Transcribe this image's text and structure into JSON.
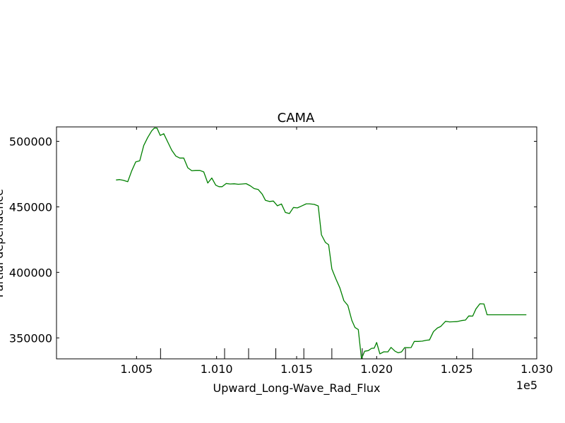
{
  "chart_data": {
    "type": "line",
    "title": "CAMA",
    "xlabel": "Upward_Long-Wave_Rad_Flux",
    "ylabel": "Partial dependence",
    "x_offset_label": "1e5",
    "xlim": [
      100000,
      103000
    ],
    "ylim": [
      334000,
      511000
    ],
    "x_ticks": [
      100500,
      101000,
      101500,
      102000,
      102500,
      103000
    ],
    "x_tick_labels": [
      "1.005",
      "1.010",
      "1.015",
      "1.020",
      "1.025",
      "1.030"
    ],
    "y_ticks": [
      350000,
      400000,
      450000,
      500000
    ],
    "y_tick_labels": [
      "350000",
      "400000",
      "450000",
      "500000"
    ],
    "rug_x": [
      100650,
      101050,
      101200,
      101370,
      101545,
      101720,
      101910,
      102180,
      102600
    ],
    "line_color": "#008000",
    "grid": false,
    "series": [
      {
        "x": [
          100372,
          100395,
          100418,
          100445,
          100470,
          100495,
          100520,
          100545,
          100570,
          100595,
          100612,
          100628,
          100648,
          100670,
          100695,
          100720,
          100745,
          100770,
          100795,
          100820,
          100845,
          100870,
          100895,
          100920,
          100945,
          100970,
          100995,
          101015,
          101035,
          101060,
          101085,
          101110,
          101135,
          101160,
          101185,
          101210,
          101235,
          101260,
          101285,
          101305,
          101330,
          101355,
          101380,
          101405,
          101430,
          101455,
          101480,
          101505,
          101530,
          101560,
          101580,
          101610,
          101635,
          101655,
          101680,
          101700,
          101720,
          101745,
          101770,
          101795,
          101820,
          101845,
          101865,
          101885,
          101905,
          101925,
          101948,
          101968,
          101985,
          102000,
          102020,
          102045,
          102070,
          102090,
          102115,
          102135,
          102155,
          102175,
          102195,
          102215,
          102235,
          102260,
          102285,
          102310,
          102330,
          102355,
          102380,
          102400,
          102430,
          102455,
          102480,
          102500,
          102530,
          102555,
          102575,
          102600,
          102620,
          102645,
          102670,
          102690,
          102715,
          102740,
          102765,
          102785,
          102805,
          102825,
          102845,
          102860,
          102875,
          102890,
          102905,
          102915,
          102925,
          102935
        ],
        "y": [
          470500,
          470800,
          470200,
          469200,
          477500,
          484300,
          485200,
          496800,
          503000,
          508100,
          510200,
          510100,
          504500,
          505800,
          499500,
          493200,
          488800,
          487200,
          487200,
          479800,
          477600,
          477800,
          477800,
          476600,
          468200,
          472000,
          466500,
          465400,
          465400,
          467800,
          467400,
          467600,
          467200,
          467400,
          467700,
          466100,
          463900,
          463200,
          459700,
          455000,
          454100,
          454400,
          450800,
          452200,
          445700,
          444900,
          449500,
          449200,
          450600,
          452300,
          452300,
          451900,
          450700,
          428700,
          422800,
          421100,
          402600,
          395100,
          388200,
          378400,
          374800,
          363300,
          357900,
          356400,
          334100,
          339800,
          340300,
          342000,
          342200,
          346500,
          337800,
          339400,
          339300,
          342700,
          339800,
          338600,
          339300,
          342600,
          342500,
          342600,
          347300,
          347300,
          347500,
          348200,
          348400,
          354800,
          357600,
          358700,
          362600,
          362200,
          362300,
          362400,
          363200,
          363600,
          366700,
          366600,
          372100,
          376000,
          375900,
          367600,
          367600,
          367600,
          367600,
          367600,
          367600,
          367600,
          367600,
          367600,
          367600,
          367600,
          367600,
          367600,
          367600,
          367600
        ]
      }
    ]
  }
}
